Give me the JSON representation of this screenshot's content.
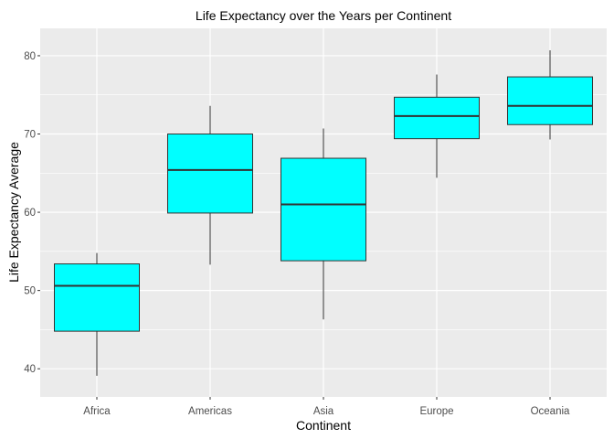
{
  "chart_data": {
    "type": "boxplot",
    "title": "Life Expectancy over the Years per Continent",
    "xlabel": "Continent",
    "ylabel": "Life Expectancy Average",
    "ylim": [
      36.4,
      83.5
    ],
    "yticks": [
      40,
      50,
      60,
      70,
      80
    ],
    "grid": true,
    "box_fill": "#00ffff",
    "panel_background": "#ebebeb",
    "categories": [
      "Africa",
      "Americas",
      "Asia",
      "Europe",
      "Oceania"
    ],
    "boxes": [
      {
        "category": "Africa",
        "min": 39.1,
        "q1": 44.8,
        "median": 50.6,
        "q3": 53.4,
        "max": 54.8
      },
      {
        "category": "Americas",
        "min": 53.3,
        "q1": 59.9,
        "median": 65.4,
        "q3": 70.0,
        "max": 73.6
      },
      {
        "category": "Asia",
        "min": 46.3,
        "q1": 53.8,
        "median": 61.0,
        "q3": 66.9,
        "max": 70.7
      },
      {
        "category": "Europe",
        "min": 64.4,
        "q1": 69.4,
        "median": 72.3,
        "q3": 74.7,
        "max": 77.6
      },
      {
        "category": "Oceania",
        "min": 69.3,
        "q1": 71.2,
        "median": 73.6,
        "q3": 77.3,
        "max": 80.7
      }
    ]
  }
}
